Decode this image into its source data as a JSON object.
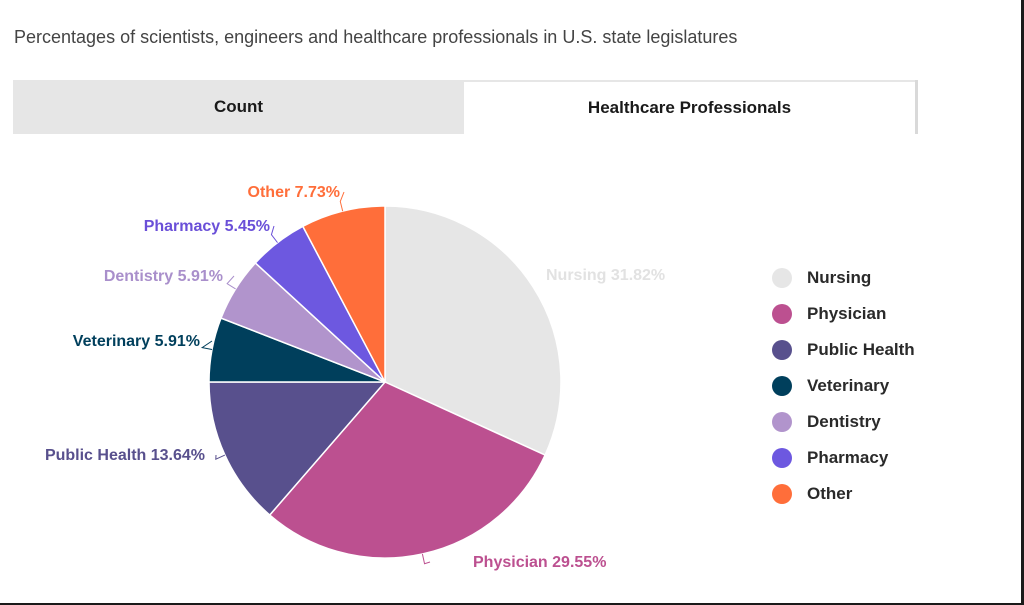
{
  "subtitle": "Percentages of scientists, engineers and healthcare professionals in U.S. state legislatures",
  "tabs": [
    {
      "label": "Count",
      "active": false
    },
    {
      "label": "Healthcare Professionals",
      "active": true
    }
  ],
  "chart_data": {
    "type": "pie",
    "start_angle_deg": 0,
    "direction": "clockwise",
    "slices": [
      {
        "name": "Nursing",
        "value": 31.82,
        "label": "Nursing 31.82%",
        "color": "#e6e6e6",
        "label_color": "#e2e2e2"
      },
      {
        "name": "Physician",
        "value": 29.55,
        "label": "Physician 29.55%",
        "color": "#bc5090",
        "label_color": "#bc5090"
      },
      {
        "name": "Public Health",
        "value": 13.64,
        "label": "Public Health 13.64%",
        "color": "#58508d",
        "label_color": "#58508d"
      },
      {
        "name": "Veterinary",
        "value": 5.91,
        "label": "Veterinary 5.91%",
        "color": "#003f5c",
        "label_color": "#003f5c"
      },
      {
        "name": "Dentistry",
        "value": 5.91,
        "label": "Dentistry 5.91%",
        "color": "#b194cc",
        "label_color": "#a98fcb"
      },
      {
        "name": "Pharmacy",
        "value": 5.45,
        "label": "Pharmacy 5.45%",
        "color": "#6d58e0",
        "label_color": "#6a4fd8"
      },
      {
        "name": "Other",
        "value": 7.73,
        "label": "Other 7.73%",
        "color": "#ff6e3a",
        "label_color": "#ff6e3a"
      }
    ],
    "legend_position": "right"
  },
  "legend": {
    "items": [
      {
        "label": "Nursing",
        "color": "#e6e6e6"
      },
      {
        "label": "Physician",
        "color": "#bc5090"
      },
      {
        "label": "Public Health",
        "color": "#58508d"
      },
      {
        "label": "Veterinary",
        "color": "#003f5c"
      },
      {
        "label": "Dentistry",
        "color": "#b194cc"
      },
      {
        "label": "Pharmacy",
        "color": "#6d58e0"
      },
      {
        "label": "Other",
        "color": "#ff6e3a"
      }
    ]
  }
}
